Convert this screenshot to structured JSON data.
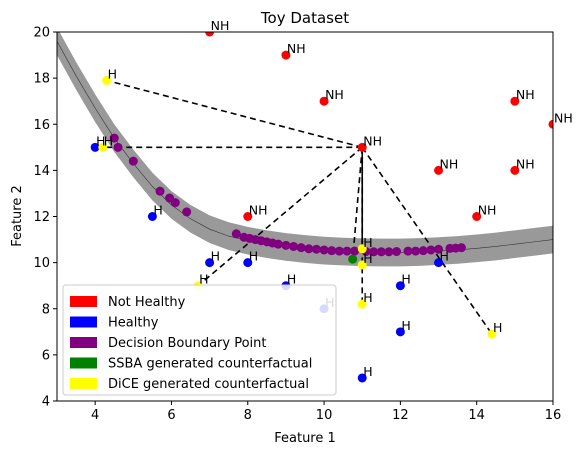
{
  "chart_data": {
    "type": "scatter",
    "title": "Toy Dataset",
    "xlabel": "Feature 1",
    "ylabel": "Feature 2",
    "xlim": [
      3,
      16
    ],
    "ylim": [
      4,
      20
    ],
    "xticks": [
      4,
      6,
      8,
      10,
      12,
      14,
      16
    ],
    "yticks": [
      4,
      6,
      8,
      10,
      12,
      14,
      16,
      18,
      20
    ],
    "grid": false,
    "legend_position": "lower-left",
    "colors": {
      "not_healthy": "#ff0000",
      "healthy": "#0000ff",
      "boundary": "#800080",
      "ssba": "#008000",
      "dice": "#ffff00",
      "band": "#999999",
      "line": "#000000"
    },
    "legend": [
      {
        "label": "Not Healthy",
        "color": "#ff0000"
      },
      {
        "label": "Healthy",
        "color": "#0000ff"
      },
      {
        "label": "Decision Boundary Point",
        "color": "#800080"
      },
      {
        "label": "SSBA generated counterfactual",
        "color": "#008000"
      },
      {
        "label": "DiCE generated counterfactual",
        "color": "#ffff00"
      }
    ],
    "not_healthy_points": [
      {
        "x": 7,
        "y": 20,
        "label": "NH"
      },
      {
        "x": 9,
        "y": 19,
        "label": "NH"
      },
      {
        "x": 10,
        "y": 17,
        "label": "NH"
      },
      {
        "x": 15,
        "y": 17,
        "label": "NH"
      },
      {
        "x": 16,
        "y": 16,
        "label": "NH"
      },
      {
        "x": 11,
        "y": 15,
        "label": "NH"
      },
      {
        "x": 13,
        "y": 14,
        "label": "NH"
      },
      {
        "x": 15,
        "y": 14,
        "label": "NH"
      },
      {
        "x": 14,
        "y": 12,
        "label": "NH"
      },
      {
        "x": 8,
        "y": 12,
        "label": "NH"
      }
    ],
    "healthy_points": [
      {
        "x": 4,
        "y": 15,
        "label": "H"
      },
      {
        "x": 5.5,
        "y": 12,
        "label": "H"
      },
      {
        "x": 7,
        "y": 10,
        "label": "H"
      },
      {
        "x": 8,
        "y": 10,
        "label": "H"
      },
      {
        "x": 9,
        "y": 9,
        "label": "H"
      },
      {
        "x": 10,
        "y": 8,
        "label": "H"
      },
      {
        "x": 13,
        "y": 10,
        "label": "H"
      },
      {
        "x": 12,
        "y": 9,
        "label": "H"
      },
      {
        "x": 12,
        "y": 7,
        "label": "H"
      },
      {
        "x": 11,
        "y": 5,
        "label": "H"
      }
    ],
    "decision_boundary_points": [
      {
        "x": 4.5,
        "y": 15.4
      },
      {
        "x": 4.6,
        "y": 15.0
      },
      {
        "x": 5.0,
        "y": 14.4
      },
      {
        "x": 5.7,
        "y": 13.1
      },
      {
        "x": 5.95,
        "y": 12.8
      },
      {
        "x": 6.1,
        "y": 12.6
      },
      {
        "x": 6.4,
        "y": 12.2
      },
      {
        "x": 7.7,
        "y": 11.25
      },
      {
        "x": 7.9,
        "y": 11.1
      },
      {
        "x": 8.05,
        "y": 11.05
      },
      {
        "x": 8.2,
        "y": 11.0
      },
      {
        "x": 8.35,
        "y": 10.95
      },
      {
        "x": 8.5,
        "y": 10.9
      },
      {
        "x": 8.65,
        "y": 10.85
      },
      {
        "x": 8.8,
        "y": 10.8
      },
      {
        "x": 9.0,
        "y": 10.75
      },
      {
        "x": 9.2,
        "y": 10.7
      },
      {
        "x": 9.4,
        "y": 10.65
      },
      {
        "x": 9.6,
        "y": 10.6
      },
      {
        "x": 9.8,
        "y": 10.58
      },
      {
        "x": 10.0,
        "y": 10.55
      },
      {
        "x": 10.2,
        "y": 10.52
      },
      {
        "x": 10.4,
        "y": 10.5
      },
      {
        "x": 10.6,
        "y": 10.5
      },
      {
        "x": 10.8,
        "y": 10.5
      },
      {
        "x": 11.1,
        "y": 10.48
      },
      {
        "x": 11.3,
        "y": 10.47
      },
      {
        "x": 11.5,
        "y": 10.47
      },
      {
        "x": 11.7,
        "y": 10.47
      },
      {
        "x": 11.9,
        "y": 10.48
      },
      {
        "x": 12.2,
        "y": 10.5
      },
      {
        "x": 12.4,
        "y": 10.5
      },
      {
        "x": 12.6,
        "y": 10.52
      },
      {
        "x": 12.8,
        "y": 10.55
      },
      {
        "x": 13.0,
        "y": 10.58
      },
      {
        "x": 13.3,
        "y": 10.62
      },
      {
        "x": 13.45,
        "y": 10.63
      },
      {
        "x": 13.6,
        "y": 10.65
      }
    ],
    "ssba_points": [
      {
        "x": 10.75,
        "y": 10.15
      }
    ],
    "dice_points": [
      {
        "x": 4.3,
        "y": 17.9,
        "label": "H"
      },
      {
        "x": 4.2,
        "y": 15.0,
        "label": "H"
      },
      {
        "x": 6.7,
        "y": 9.0,
        "label": "H"
      },
      {
        "x": 11.0,
        "y": 10.6,
        "label": "H"
      },
      {
        "x": 11.0,
        "y": 9.9,
        "label": "H"
      },
      {
        "x": 11.0,
        "y": 8.2,
        "label": "H"
      },
      {
        "x": 14.4,
        "y": 6.9,
        "label": "H"
      }
    ],
    "counterfactual_lines": [
      {
        "from": [
          11,
          15
        ],
        "to": [
          4.3,
          17.9
        ]
      },
      {
        "from": [
          11,
          15
        ],
        "to": [
          4.2,
          15.0
        ]
      },
      {
        "from": [
          11,
          15
        ],
        "to": [
          6.7,
          9.0
        ]
      },
      {
        "from": [
          11,
          15
        ],
        "to": [
          11.0,
          10.6
        ]
      },
      {
        "from": [
          11,
          15
        ],
        "to": [
          11.0,
          8.2
        ]
      },
      {
        "from": [
          11,
          15
        ],
        "to": [
          14.4,
          6.9
        ]
      },
      {
        "from": [
          11,
          15
        ],
        "to": [
          10.75,
          10.15
        ]
      }
    ],
    "boundary_curve": {
      "x": [
        3.0,
        3.5,
        4.0,
        4.5,
        5.0,
        5.5,
        6.0,
        6.5,
        7.0,
        7.5,
        8.0,
        8.5,
        9.0,
        9.5,
        10.0,
        10.5,
        11.0,
        11.5,
        12.0,
        12.5,
        13.0,
        13.5,
        14.0,
        14.5,
        15.0,
        15.5,
        16.0
      ],
      "y": [
        19.6,
        18.1,
        16.7,
        15.4,
        14.3,
        13.3,
        12.5,
        11.9,
        11.45,
        11.15,
        10.95,
        10.8,
        10.68,
        10.59,
        10.52,
        10.48,
        10.45,
        10.44,
        10.44,
        10.46,
        10.5,
        10.55,
        10.62,
        10.7,
        10.8,
        10.9,
        11.0
      ],
      "band_halfwidth": 0.6
    }
  }
}
